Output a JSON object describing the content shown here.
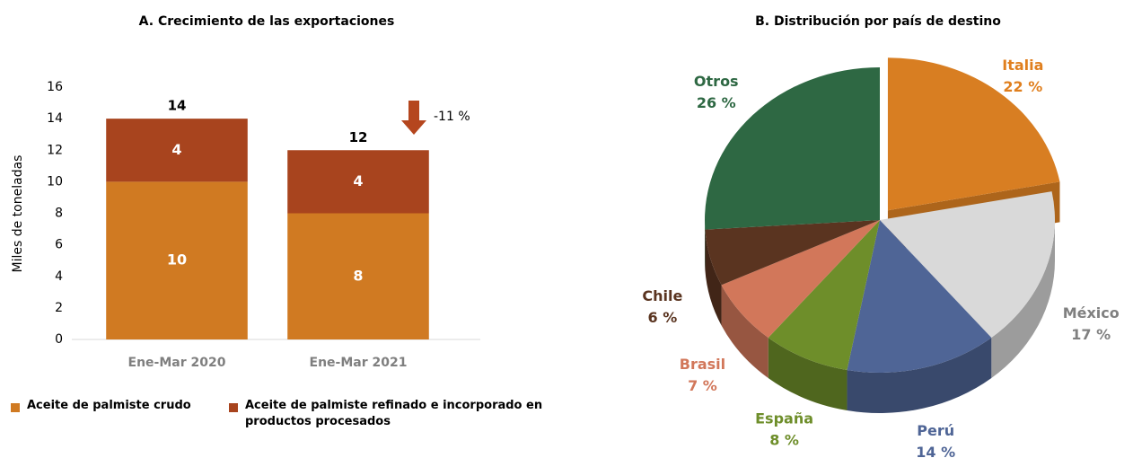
{
  "chart_data": [
    {
      "type": "bar",
      "stacked": true,
      "title": "A. Crecimiento de las exportaciones",
      "ylabel": "Miles de toneladas",
      "categories": [
        "Ene-Mar 2020",
        "Ene-Mar 2021"
      ],
      "series": [
        {
          "name": "Aceite de palmiste crudo",
          "color": "#D07A22",
          "values": [
            10,
            8
          ]
        },
        {
          "name": "Aceite de palmiste refinado e incorporado en productos procesados",
          "color": "#A8441E",
          "values": [
            4,
            4
          ]
        }
      ],
      "totals": [
        14,
        12
      ],
      "annotation": "-11 %",
      "ylim": [
        0,
        16
      ],
      "yticks": [
        0,
        2,
        4,
        6,
        8,
        10,
        12,
        14,
        16
      ],
      "legend": "bottom"
    },
    {
      "type": "pie",
      "title": "B. Distribución por país de destino",
      "categories": [
        "Italia",
        "México",
        "Perú",
        "España",
        "Brasil",
        "Chile",
        "Otros"
      ],
      "values": [
        22,
        17,
        14,
        8,
        7,
        6,
        26
      ],
      "value_labels": [
        "22 %",
        "17 %",
        "14 %",
        "8 %",
        "7 %",
        "6 %",
        "26 %"
      ],
      "colors": [
        "#D87E22",
        "#D9D9D9",
        "#4F6596",
        "#6E8E2A",
        "#D2775A",
        "#5A3420",
        "#2E6843"
      ],
      "label_colors": [
        "#E07F1E",
        "#808080",
        "#4F6596",
        "#6E8E2A",
        "#D2775A",
        "#5A3420",
        "#2E6843"
      ]
    }
  ]
}
